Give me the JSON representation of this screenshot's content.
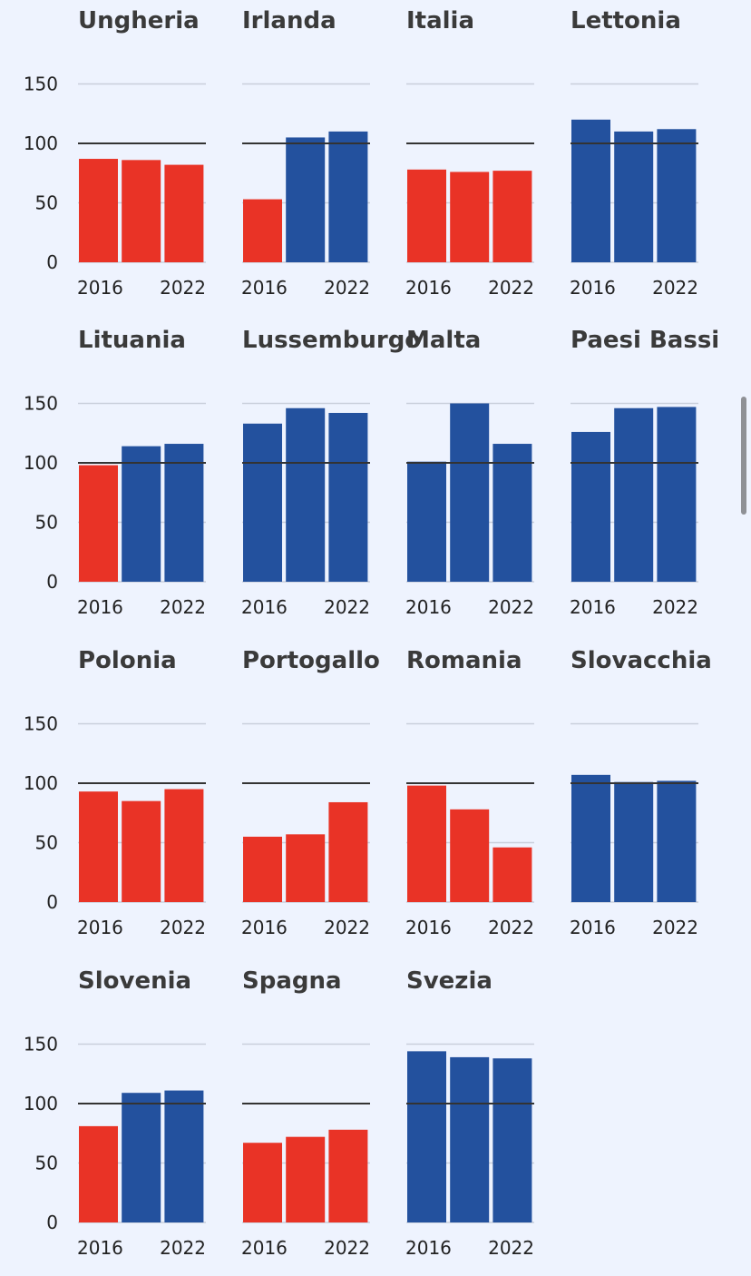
{
  "chart_data": {
    "type": "bar",
    "y_ticks": [
      0,
      50,
      100,
      150
    ],
    "ylim": [
      0,
      170
    ],
    "reference_line": 100,
    "x_tick_labels": [
      "2016",
      "2022"
    ],
    "colors": {
      "below_reference": "#e93326",
      "above_reference": "#23519e",
      "reference_line": "#333333",
      "grid": "#c9cfdb"
    },
    "panels": [
      {
        "title": "Ungheria",
        "values": [
          87,
          86,
          82
        ]
      },
      {
        "title": "Irlanda",
        "values": [
          53,
          105,
          110
        ]
      },
      {
        "title": "Italia",
        "values": [
          78,
          76,
          77
        ]
      },
      {
        "title": "Lettonia",
        "values": [
          120,
          110,
          112
        ]
      },
      {
        "title": "Lituania",
        "values": [
          98,
          114,
          116
        ]
      },
      {
        "title": "Lussemburgo",
        "values": [
          133,
          146,
          142
        ]
      },
      {
        "title": "Malta",
        "values": [
          101,
          150,
          116
        ]
      },
      {
        "title": "Paesi Bassi",
        "values": [
          126,
          146,
          147
        ]
      },
      {
        "title": "Polonia",
        "values": [
          93,
          85,
          95
        ]
      },
      {
        "title": "Portogallo",
        "values": [
          55,
          57,
          84
        ]
      },
      {
        "title": "Romania",
        "values": [
          98,
          78,
          46
        ]
      },
      {
        "title": "Slovacchia",
        "values": [
          107,
          101,
          102
        ]
      },
      {
        "title": "Slovenia",
        "values": [
          81,
          109,
          111
        ]
      },
      {
        "title": "Spagna",
        "values": [
          67,
          72,
          78
        ]
      },
      {
        "title": "Svezia",
        "values": [
          144,
          139,
          138
        ]
      }
    ]
  }
}
